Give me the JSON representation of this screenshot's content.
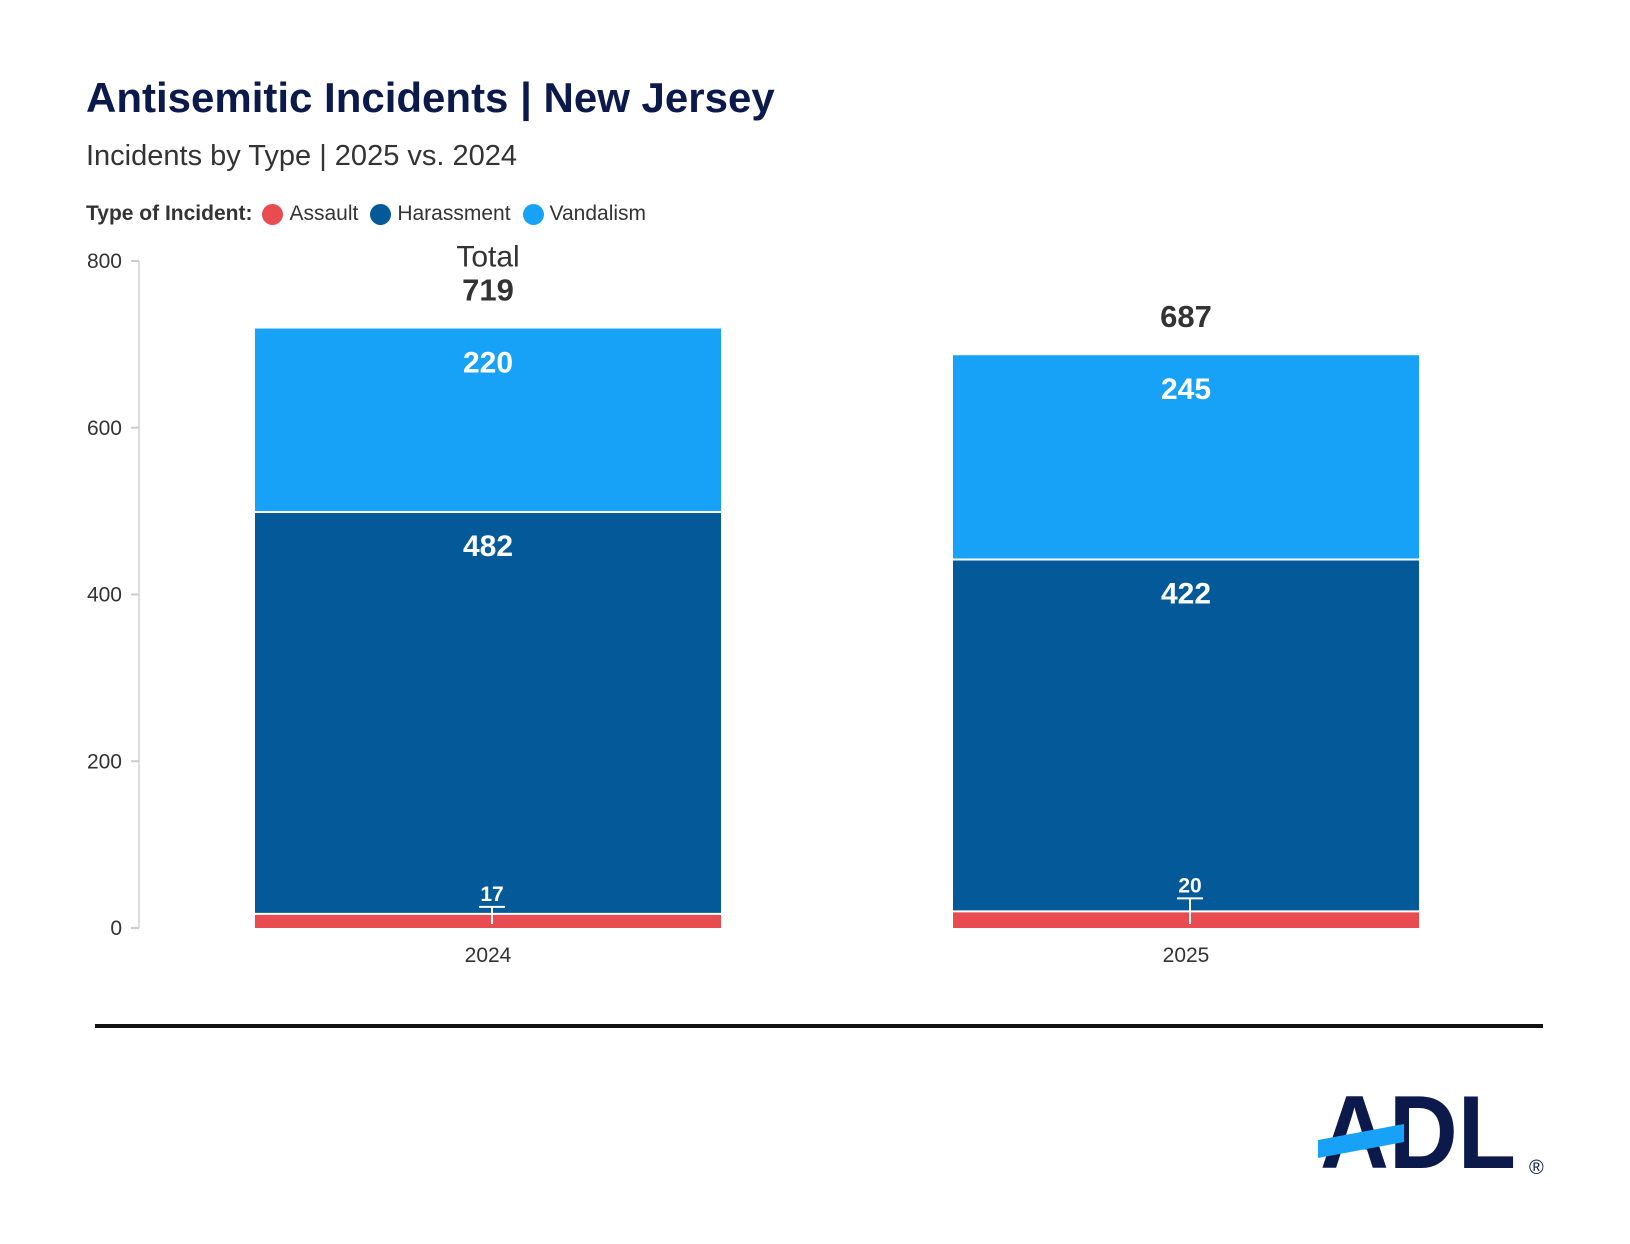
{
  "title": "Antisemitic Incidents | New Jersey",
  "subtitle": "Incidents by Type | 2025 vs. 2024",
  "legend": {
    "title": "Type of Incident:",
    "items": [
      {
        "label": "Assault",
        "color": "#e84c50"
      },
      {
        "label": "Harassment",
        "color": "#045a99"
      },
      {
        "label": "Vandalism",
        "color": "#17a2f8"
      }
    ]
  },
  "chart_data": {
    "type": "bar",
    "stacked": true,
    "categories": [
      "2024",
      "2025"
    ],
    "series": [
      {
        "name": "Assault",
        "color": "#e84c50",
        "values": [
          17,
          20
        ]
      },
      {
        "name": "Harassment",
        "color": "#045a99",
        "values": [
          482,
          422
        ]
      },
      {
        "name": "Vandalism",
        "color": "#17a2f8",
        "values": [
          220,
          245
        ]
      }
    ],
    "totals": [
      719,
      687
    ],
    "total_label": "Total",
    "ylim": [
      0,
      800
    ],
    "yticks": [
      0,
      200,
      400,
      600,
      800
    ],
    "grid": false,
    "legend_position": "top-left"
  },
  "logo": {
    "text": "ADL",
    "registered": "®",
    "color": "#0c1a4b",
    "accent": "#17a2f8"
  }
}
